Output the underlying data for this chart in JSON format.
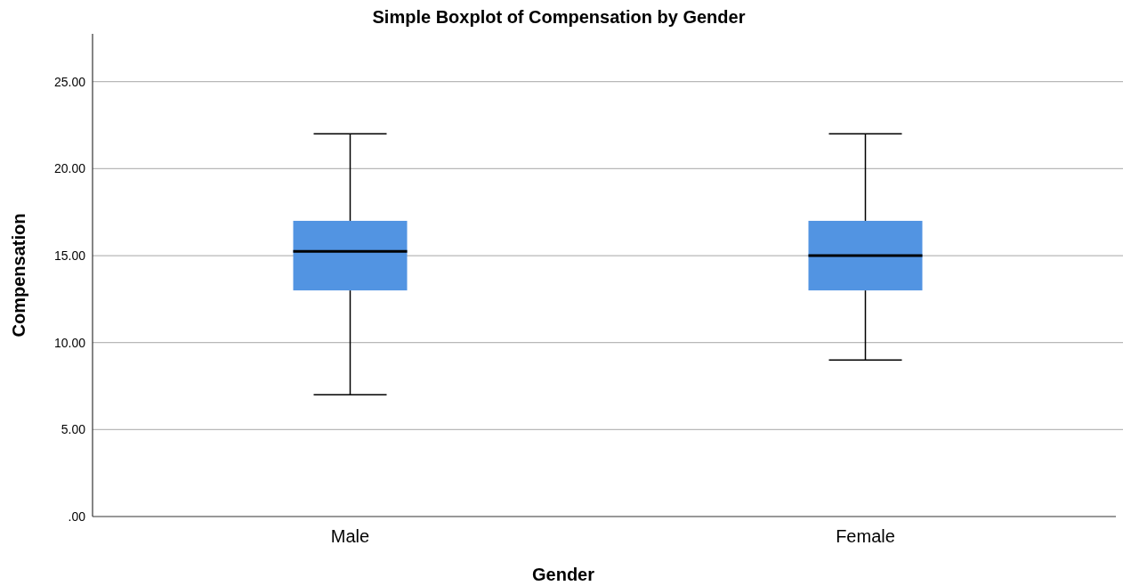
{
  "chart_data": {
    "type": "box",
    "title": "Simple Boxplot of Compensation by Gender",
    "xlabel": "Gender",
    "ylabel": "Compensation",
    "categories": [
      "Male",
      "Female"
    ],
    "boxes": [
      {
        "low": 7,
        "q1": 13,
        "median": 15.25,
        "q3": 17,
        "high": 22
      },
      {
        "low": 9,
        "q1": 13,
        "median": 15,
        "q3": 17,
        "high": 22
      }
    ],
    "color": "#5294e2",
    "ylim": [
      0,
      27.75
    ],
    "yticks": [
      {
        "value": 0,
        "label": ".00"
      },
      {
        "value": 5,
        "label": "5.00"
      },
      {
        "value": 10,
        "label": "10.00"
      },
      {
        "value": 15,
        "label": "15.00"
      },
      {
        "value": 20,
        "label": "20.00"
      },
      {
        "value": 25,
        "label": "25.00"
      }
    ],
    "grid": "y"
  }
}
